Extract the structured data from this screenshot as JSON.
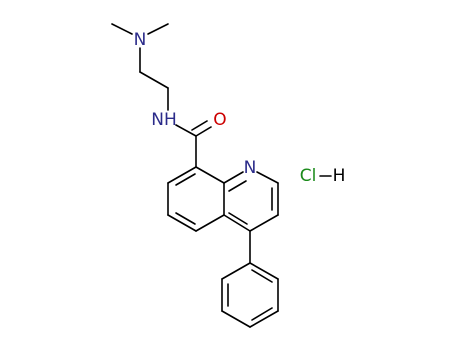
{
  "atoms": [
    {
      "label": "N"
    },
    {
      "label": "NH"
    },
    {
      "label": "O"
    },
    {
      "label": "N"
    },
    {
      "label": "Cl"
    },
    {
      "label": "H"
    }
  ]
}
